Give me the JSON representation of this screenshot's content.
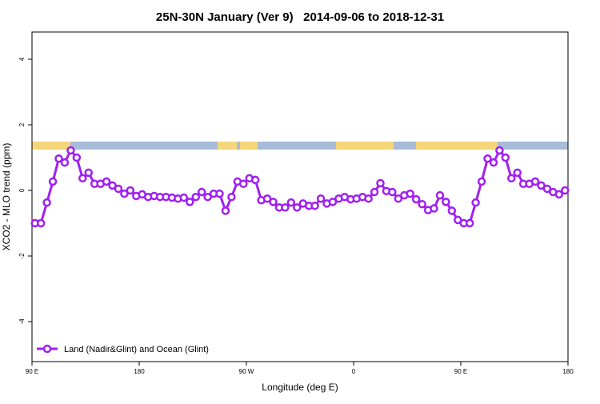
{
  "chart_data": {
    "type": "line",
    "title": "25N-30N January (Ver 9)   2014-09-06 to 2018-12-31",
    "x_label": "Longitude (deg E)",
    "y_label": "XCO2 - MLO trend (ppm)",
    "x": [
      92.5,
      97.5,
      102.5,
      107.5,
      112.5,
      117.5,
      122.5,
      127.5,
      132.5,
      137.5,
      142.5,
      147.5,
      152.5,
      157.5,
      162.5,
      167.5,
      172.5,
      177.5,
      182.5,
      187.5,
      192.5,
      197.5,
      202.5,
      207.5,
      212.5,
      217.5,
      222.5,
      227.5,
      232.5,
      237.5,
      242.5,
      247.5,
      252.5,
      257.5,
      262.5,
      267.5,
      272.5,
      277.5,
      282.5,
      287.5,
      292.5,
      297.5,
      302.5,
      307.5,
      312.5,
      317.5,
      322.5,
      327.5,
      332.5,
      337.5,
      342.5,
      347.5,
      352.5,
      357.5,
      362.5,
      367.5,
      372.5,
      377.5,
      382.5,
      387.5,
      392.5,
      397.5,
      402.5,
      407.5,
      412.5,
      417.5,
      422.5,
      427.5,
      432.5,
      437.5,
      442.5,
      447.5,
      452.5,
      457.5,
      462.5,
      467.5,
      472.5,
      477.5,
      482.5,
      487.5,
      492.5,
      497.5,
      502.5,
      507.5,
      512.5,
      517.5,
      522.5,
      527.5,
      532.5,
      537.5
    ],
    "series": [
      {
        "name": "Land (Nadir&Glint) and Ocean (Glint)",
        "color": "#a020f0",
        "values": [
          -1.0,
          -1.0,
          -0.37,
          0.27,
          0.97,
          0.85,
          1.22,
          1.0,
          0.37,
          0.54,
          0.2,
          0.2,
          0.27,
          0.15,
          0.05,
          -0.1,
          0.0,
          -0.17,
          -0.12,
          -0.2,
          -0.17,
          -0.2,
          -0.2,
          -0.22,
          -0.25,
          -0.22,
          -0.35,
          -0.2,
          -0.05,
          -0.2,
          -0.1,
          -0.1,
          -0.62,
          -0.2,
          0.27,
          0.2,
          0.37,
          0.32,
          -0.3,
          -0.25,
          -0.35,
          -0.52,
          -0.52,
          -0.37,
          -0.52,
          -0.4,
          -0.47,
          -0.47,
          -0.25,
          -0.4,
          -0.35,
          -0.25,
          -0.2,
          -0.27,
          -0.25,
          -0.2,
          -0.25,
          -0.05,
          0.22,
          -0.02,
          -0.05,
          -0.25,
          -0.15,
          -0.1,
          -0.27,
          -0.42,
          -0.6,
          -0.55,
          -0.15,
          -0.35,
          -0.62,
          -0.9,
          -1.0,
          -1.0,
          -0.37,
          0.27,
          0.97,
          0.85,
          1.22,
          1.0,
          0.37,
          0.54,
          0.2,
          0.2,
          0.27,
          0.15,
          0.05,
          -0.05,
          -0.12,
          0.0
        ]
      }
    ],
    "xlim": [
      90,
      540
    ],
    "xticks": [
      {
        "value": 90,
        "label": "90 E"
      },
      180,
      {
        "value": 270,
        "label": "90 W"
      },
      {
        "value": 360,
        "label": "0"
      },
      {
        "value": 450,
        "label": "90 E"
      },
      {
        "value": 540,
        "label": "180"
      }
    ],
    "ylim": [
      -5.22,
      4.83
    ],
    "yticks": [
      -4,
      -2,
      0,
      2,
      4
    ],
    "legend": "bottomleft"
  }
}
